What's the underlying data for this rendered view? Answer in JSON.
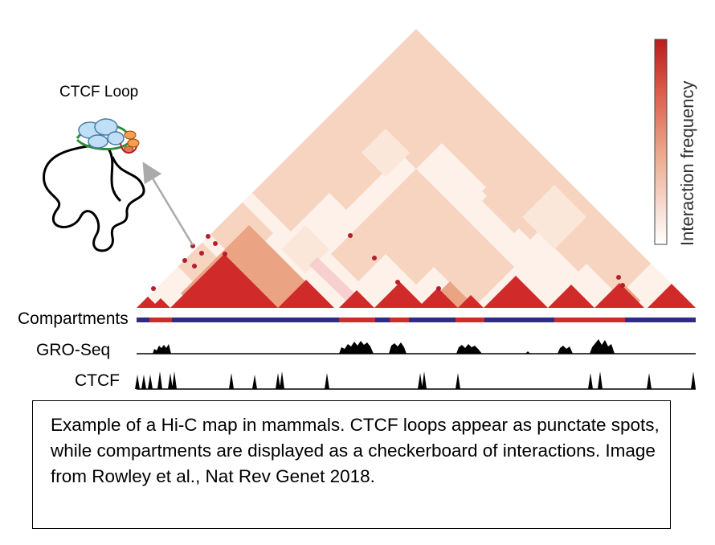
{
  "diagram": {
    "loop_label": "CTCF Loop",
    "legend_label": "Interaction frequency",
    "colors": {
      "red": "#d02a2a",
      "blue": "#2e2c84",
      "legend_top": "#b81e1e",
      "salmon": "#f6d8c6"
    },
    "tracks": [
      {
        "id": "compartments",
        "label": "Compartments"
      },
      {
        "id": "gro-seq",
        "label": "GRO-Seq"
      },
      {
        "id": "ctcf",
        "label": "CTCF"
      }
    ]
  },
  "caption": {
    "text": "Example of a Hi-C map in mammals. CTCF loops appear as punctate spots, while compartments are displayed as a checkerboard of interactions. Image from Rowley et al., Nat Rev Genet 2018."
  }
}
